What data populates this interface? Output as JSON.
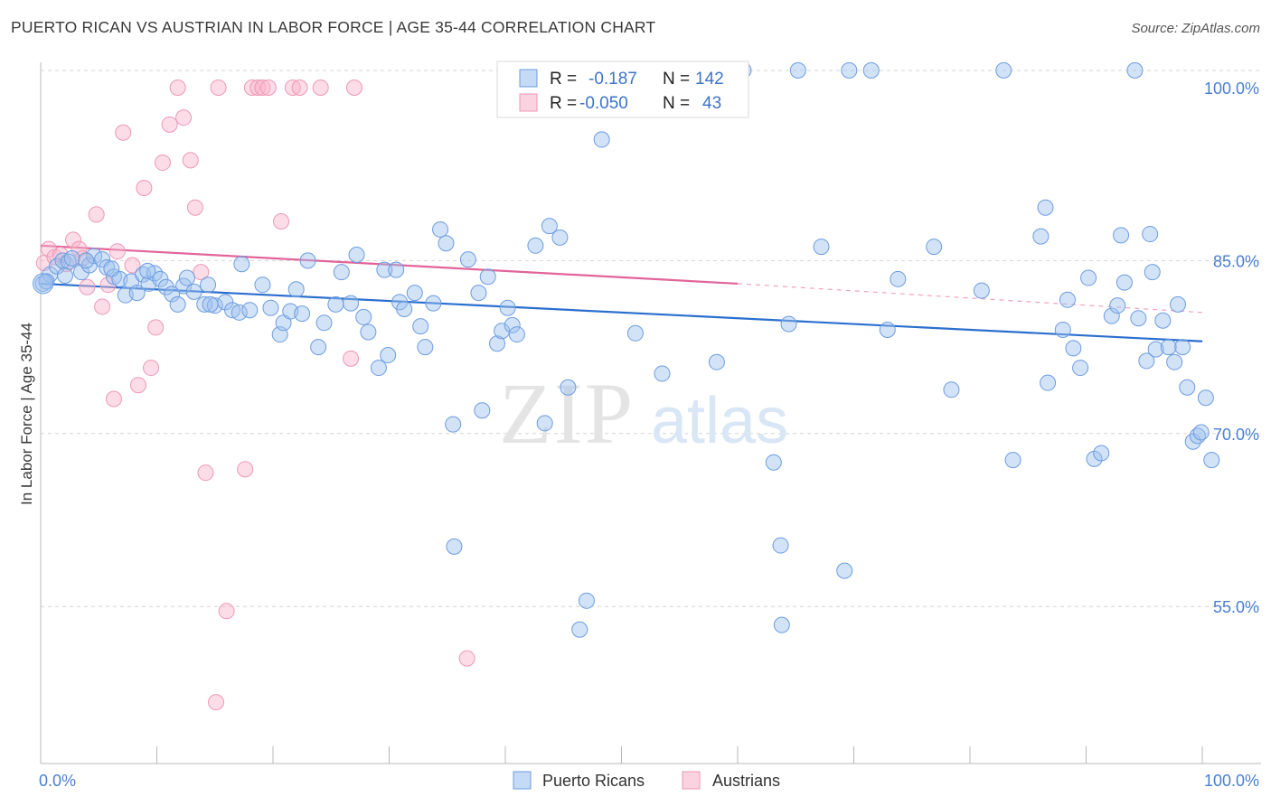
{
  "title": "PUERTO RICAN VS AUSTRIAN IN LABOR FORCE | AGE 35-44 CORRELATION CHART",
  "source": "Source: ZipAtlas.com",
  "watermark": {
    "zip": "ZIP",
    "atlas": "atlas"
  },
  "colors": {
    "blue_fill": "rgba(157,193,238,0.45)",
    "blue_stroke": "#6c9ce0",
    "blue_line": "#2b6fce",
    "pink_fill": "rgba(248,180,202,0.45)",
    "pink_stroke": "#ee98b5",
    "pink_line": "#e2649a",
    "grid": "#d6d6d6",
    "tick_text": "#4a7fcf"
  },
  "legend": {
    "rows": [
      {
        "r_label": "R =",
        "r_value": "-0.187",
        "n_label": "N =",
        "n_value": "142"
      },
      {
        "r_label": "R =",
        "r_value": "-0.050",
        "n_label": "N =",
        "n_value": "43"
      }
    ]
  },
  "bottom_legend": [
    {
      "label": "Puerto Ricans",
      "icon": "blue-square-icon"
    },
    {
      "label": "Austrians",
      "icon": "pink-square-icon"
    }
  ],
  "chart_data": {
    "type": "scatter",
    "title": "PUERTO RICAN VS AUSTRIAN IN LABOR FORCE | AGE 35-44 CORRELATION CHART",
    "xlabel": "",
    "ylabel": "In Labor Force | Age 35-44",
    "xlim": [
      0,
      100
    ],
    "ylim": [
      40,
      101.5
    ],
    "x_tick_labels": [
      "0.0%",
      "100.0%"
    ],
    "y_ticks": [
      55,
      70,
      85,
      100
    ],
    "y_tick_labels": [
      "55.0%",
      "70.0%",
      "85.0%",
      "100.0%"
    ],
    "grid": true,
    "series": [
      {
        "name": "Puerto Ricans",
        "r": -0.187,
        "n": 142,
        "trend": {
          "x": [
            0,
            100
          ],
          "y": [
            83.0,
            78.0
          ]
        },
        "points": [
          [
            0.2,
            83.0
          ],
          [
            0.8,
            83.8
          ],
          [
            1.4,
            84.5
          ],
          [
            1.9,
            85.0
          ],
          [
            2.4,
            84.9
          ],
          [
            2.7,
            85.2
          ],
          [
            3.5,
            84.0
          ],
          [
            4.2,
            84.6
          ],
          [
            4.6,
            85.4
          ],
          [
            5.3,
            85.1
          ],
          [
            5.7,
            84.4
          ],
          [
            6.3,
            83.6
          ],
          [
            6.8,
            83.4
          ],
          [
            7.3,
            82.0
          ],
          [
            7.8,
            83.2
          ],
          [
            8.3,
            82.2
          ],
          [
            8.8,
            83.8
          ],
          [
            9.3,
            83.0
          ],
          [
            9.8,
            83.9
          ],
          [
            10.3,
            83.4
          ],
          [
            10.8,
            82.7
          ],
          [
            11.3,
            82.1
          ],
          [
            11.8,
            81.2
          ],
          [
            12.3,
            82.8
          ],
          [
            12.6,
            83.5
          ],
          [
            13.2,
            82.3
          ],
          [
            14.1,
            81.2
          ],
          [
            14.4,
            82.9
          ],
          [
            15.0,
            81.1
          ],
          [
            15.9,
            81.4
          ],
          [
            16.5,
            80.7
          ],
          [
            17.1,
            80.5
          ],
          [
            18.0,
            80.7
          ],
          [
            17.3,
            84.7
          ],
          [
            19.1,
            82.9
          ],
          [
            19.8,
            80.9
          ],
          [
            20.6,
            78.6
          ],
          [
            20.9,
            79.6
          ],
          [
            21.5,
            80.6
          ],
          [
            22.0,
            82.5
          ],
          [
            22.5,
            80.4
          ],
          [
            23.0,
            85.0
          ],
          [
            23.9,
            77.5
          ],
          [
            24.4,
            79.6
          ],
          [
            25.4,
            81.2
          ],
          [
            25.9,
            84.0
          ],
          [
            26.7,
            81.3
          ],
          [
            27.2,
            85.5
          ],
          [
            27.8,
            80.1
          ],
          [
            28.2,
            78.8
          ],
          [
            29.1,
            75.7
          ],
          [
            29.6,
            84.2
          ],
          [
            29.9,
            76.8
          ],
          [
            30.6,
            84.2
          ],
          [
            30.9,
            81.4
          ],
          [
            31.3,
            80.8
          ],
          [
            32.2,
            82.2
          ],
          [
            32.7,
            79.3
          ],
          [
            33.1,
            77.5
          ],
          [
            33.8,
            81.3
          ],
          [
            34.4,
            87.7
          ],
          [
            34.9,
            86.5
          ],
          [
            35.5,
            70.8
          ],
          [
            35.6,
            60.2
          ],
          [
            36.8,
            85.1
          ],
          [
            37.7,
            82.2
          ],
          [
            38.0,
            72.0
          ],
          [
            38.5,
            83.6
          ],
          [
            39.3,
            77.8
          ],
          [
            39.7,
            78.9
          ],
          [
            40.2,
            80.9
          ],
          [
            40.6,
            79.4
          ],
          [
            41.0,
            78.6
          ],
          [
            42.6,
            86.3
          ],
          [
            43.4,
            70.9
          ],
          [
            43.8,
            88.0
          ],
          [
            44.7,
            87.0
          ],
          [
            45.4,
            74.0
          ],
          [
            46.0,
            101.5
          ],
          [
            46.4,
            53.0
          ],
          [
            47.0,
            55.5
          ],
          [
            48.3,
            95.5
          ],
          [
            48.6,
            101.5
          ],
          [
            51.2,
            78.7
          ],
          [
            53.5,
            75.2
          ],
          [
            58.2,
            76.2
          ],
          [
            59.1,
            101.5
          ],
          [
            60.5,
            101.5
          ],
          [
            63.1,
            67.5
          ],
          [
            63.7,
            60.3
          ],
          [
            63.8,
            53.4
          ],
          [
            64.4,
            79.5
          ],
          [
            65.2,
            101.5
          ],
          [
            67.2,
            86.2
          ],
          [
            69.2,
            58.1
          ],
          [
            69.6,
            101.5
          ],
          [
            72.9,
            79.0
          ],
          [
            73.8,
            83.4
          ],
          [
            76.9,
            86.2
          ],
          [
            78.4,
            73.8
          ],
          [
            81.0,
            82.4
          ],
          [
            82.9,
            101.5
          ],
          [
            83.7,
            67.7
          ],
          [
            86.1,
            87.1
          ],
          [
            86.5,
            89.6
          ],
          [
            86.7,
            74.4
          ],
          [
            88.0,
            79.0
          ],
          [
            88.4,
            81.6
          ],
          [
            88.9,
            77.4
          ],
          [
            89.5,
            75.7
          ],
          [
            90.2,
            83.5
          ],
          [
            90.7,
            67.8
          ],
          [
            91.3,
            68.3
          ],
          [
            92.2,
            80.2
          ],
          [
            92.7,
            81.1
          ],
          [
            93.0,
            87.2
          ],
          [
            93.3,
            83.1
          ],
          [
            94.2,
            101.5
          ],
          [
            94.5,
            80.0
          ],
          [
            95.2,
            76.3
          ],
          [
            95.5,
            87.3
          ],
          [
            95.7,
            84.0
          ],
          [
            96.0,
            77.3
          ],
          [
            96.6,
            79.8
          ],
          [
            97.1,
            77.5
          ],
          [
            97.6,
            76.2
          ],
          [
            97.9,
            81.2
          ],
          [
            98.3,
            77.5
          ],
          [
            98.7,
            74.0
          ],
          [
            99.2,
            69.3
          ],
          [
            99.6,
            69.8
          ],
          [
            99.9,
            70.1
          ],
          [
            100.3,
            73.1
          ],
          [
            100.8,
            67.7
          ],
          [
            71.5,
            101.5
          ],
          [
            55.1,
            101.5
          ],
          [
            14.6,
            81.2
          ],
          [
            9.2,
            84.1
          ],
          [
            6.1,
            84.3
          ],
          [
            3.9,
            85.0
          ],
          [
            2.1,
            83.7
          ],
          [
            0.5,
            83.2
          ]
        ]
      },
      {
        "name": "Austrians",
        "r": -0.05,
        "n": 43,
        "trend": {
          "x": [
            0,
            60
          ],
          "y": [
            86.3,
            83.0
          ]
        },
        "trend_dashed": {
          "x": [
            60,
            100
          ],
          "y": [
            83.0,
            80.5
          ]
        },
        "points": [
          [
            0.3,
            84.8
          ],
          [
            0.7,
            86.0
          ],
          [
            1.2,
            85.3
          ],
          [
            1.7,
            85.5
          ],
          [
            2.2,
            84.7
          ],
          [
            2.8,
            86.8
          ],
          [
            3.3,
            86.0
          ],
          [
            4.0,
            82.7
          ],
          [
            4.8,
            89.0
          ],
          [
            5.3,
            81.0
          ],
          [
            5.8,
            82.9
          ],
          [
            6.6,
            85.8
          ],
          [
            7.1,
            96.1
          ],
          [
            7.9,
            84.6
          ],
          [
            8.4,
            74.2
          ],
          [
            8.9,
            91.3
          ],
          [
            9.5,
            75.7
          ],
          [
            9.9,
            79.2
          ],
          [
            10.5,
            93.5
          ],
          [
            11.1,
            96.8
          ],
          [
            11.8,
            100.0
          ],
          [
            12.3,
            97.4
          ],
          [
            12.9,
            93.7
          ],
          [
            13.3,
            89.6
          ],
          [
            13.8,
            84.0
          ],
          [
            14.2,
            66.6
          ],
          [
            15.1,
            46.7
          ],
          [
            15.3,
            100.0
          ],
          [
            16.0,
            54.6
          ],
          [
            17.6,
            66.9
          ],
          [
            18.2,
            100.0
          ],
          [
            18.7,
            100.0
          ],
          [
            19.1,
            100.0
          ],
          [
            19.6,
            100.0
          ],
          [
            20.7,
            88.4
          ],
          [
            21.7,
            100.0
          ],
          [
            22.3,
            100.0
          ],
          [
            24.1,
            100.0
          ],
          [
            26.7,
            76.5
          ],
          [
            27.0,
            100.0
          ],
          [
            36.7,
            50.5
          ],
          [
            6.3,
            73.0
          ],
          [
            3.6,
            85.2
          ]
        ]
      }
    ]
  }
}
